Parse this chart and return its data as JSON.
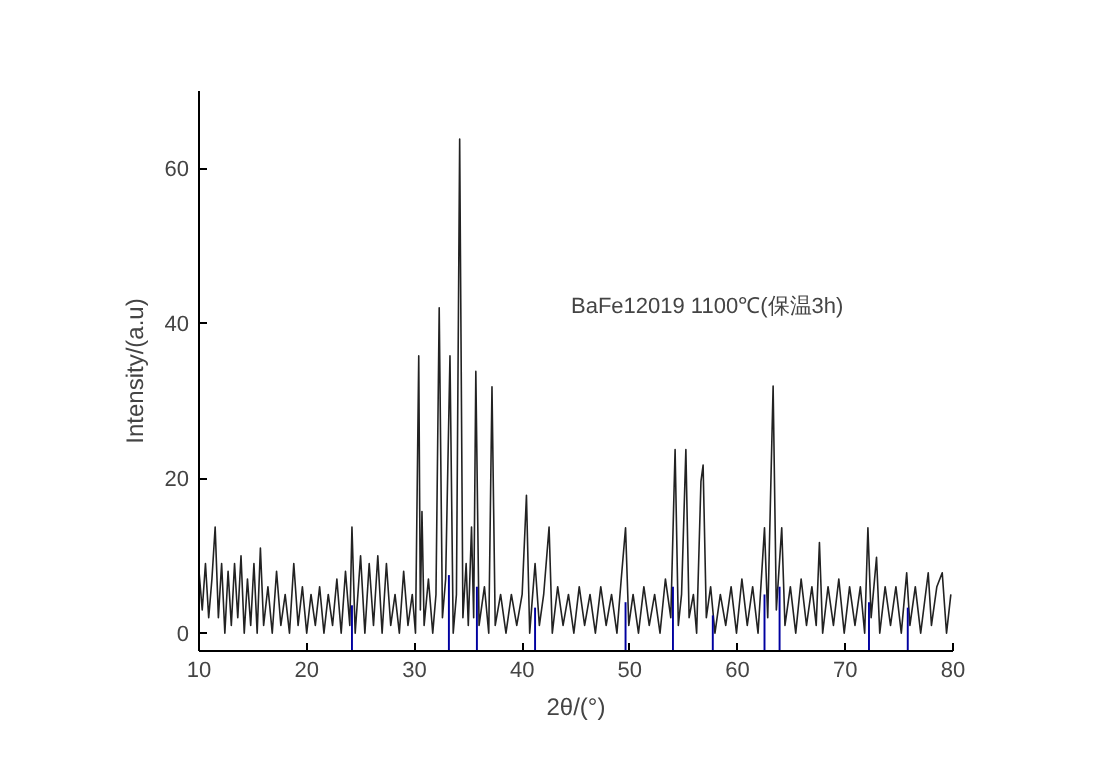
{
  "chart_data": {
    "type": "line",
    "xlabel": "2θ/(°)",
    "ylabel": "Intensity/(a.u)",
    "annotations": [
      "BaFe12019 1100℃(保温3h)"
    ],
    "xlim": [
      10,
      80
    ],
    "ylim": [
      -2.3,
      70
    ],
    "xticks": [
      10,
      20,
      30,
      40,
      50,
      60,
      70,
      80
    ],
    "yticks": [
      0,
      20,
      40,
      60
    ],
    "grid": false,
    "series": [
      {
        "color": "#222222",
        "x": [
          10,
          10.3,
          10.6,
          10.9,
          11.2,
          11.5,
          11.8,
          12.1,
          12.4,
          12.7,
          13.0,
          13.3,
          13.6,
          13.9,
          14.2,
          14.5,
          14.8,
          15.1,
          15.4,
          15.7,
          16.0,
          16.4,
          16.8,
          17.2,
          17.6,
          18.0,
          18.4,
          18.8,
          19.2,
          19.6,
          20.0,
          20.4,
          20.8,
          21.2,
          21.6,
          22.0,
          22.4,
          22.8,
          23.2,
          23.6,
          24.0,
          24.2,
          24.5,
          25.0,
          25.4,
          25.8,
          26.2,
          26.6,
          27.0,
          27.4,
          27.8,
          28.2,
          28.6,
          29.0,
          29.4,
          29.8,
          30.1,
          30.4,
          30.55,
          30.7,
          30.9,
          31.3,
          31.7,
          32.0,
          32.3,
          32.6,
          32.9,
          33.3,
          33.6,
          33.9,
          34.2,
          34.5,
          34.8,
          35.0,
          35.3,
          35.5,
          35.7,
          36.0,
          36.5,
          36.9,
          37.2,
          37.5,
          38.0,
          38.5,
          39.0,
          39.5,
          40.0,
          40.4,
          40.7,
          41.2,
          41.6,
          42.0,
          42.5,
          42.8,
          43.3,
          43.8,
          44.3,
          44.8,
          45.3,
          45.8,
          46.3,
          46.8,
          47.3,
          47.8,
          48.3,
          48.8,
          49.2,
          49.6,
          49.9,
          50.3,
          50.8,
          51.3,
          51.8,
          52.3,
          52.8,
          53.3,
          53.8,
          54.2,
          54.5,
          54.8,
          55.2,
          55.5,
          55.9,
          56.2,
          56.6,
          56.8,
          57.1,
          57.5,
          57.9,
          58.4,
          58.9,
          59.4,
          59.9,
          60.4,
          60.9,
          61.4,
          61.9,
          62.5,
          62.8,
          63.3,
          63.6,
          64.1,
          64.4,
          64.9,
          65.4,
          65.9,
          66.4,
          66.9,
          67.3,
          67.6,
          67.9,
          68.4,
          68.9,
          69.4,
          69.9,
          70.4,
          70.9,
          71.4,
          71.8,
          72.1,
          72.4,
          72.9,
          73.2,
          73.7,
          74.2,
          74.7,
          75.2,
          75.7,
          76.0,
          76.5,
          77.0,
          77.7,
          78.0,
          78.5,
          79.0,
          79.4,
          79.8
        ],
        "values": [
          8,
          3,
          9,
          2,
          7,
          13.7,
          2,
          9,
          0,
          8,
          1,
          9,
          2,
          10,
          0,
          7,
          1,
          9,
          0,
          11,
          1,
          6,
          0,
          8,
          1,
          5,
          0,
          9,
          1,
          6,
          0,
          5,
          1,
          6,
          0,
          5,
          1,
          7,
          0,
          8,
          1,
          13.7,
          0,
          10,
          0,
          9,
          1,
          10,
          0,
          9,
          1,
          5,
          0,
          8,
          1,
          5,
          0,
          35.8,
          3,
          15.7,
          1,
          7,
          0,
          5,
          42,
          2,
          7,
          35.8,
          0,
          5,
          63.8,
          2,
          9,
          1,
          13.7,
          2,
          33.8,
          1,
          6,
          0,
          31.8,
          1,
          5,
          0,
          5,
          1,
          5,
          17.8,
          0,
          9,
          1,
          5,
          13.7,
          0,
          6,
          1,
          5,
          0,
          6,
          1,
          5,
          0,
          6,
          1,
          5,
          0,
          7,
          13.6,
          1,
          5,
          0,
          6,
          1,
          5,
          0,
          7,
          2,
          23.7,
          1,
          5,
          23.7,
          2,
          5,
          0,
          19.6,
          21.7,
          2,
          6,
          0,
          5,
          1,
          6,
          0,
          7,
          1,
          6,
          0,
          13.6,
          2,
          31.9,
          3,
          13.6,
          1,
          6,
          0,
          7,
          1,
          6,
          1,
          11.7,
          0,
          6,
          1,
          7,
          0,
          6,
          1,
          6,
          0,
          13.6,
          2,
          9.8,
          0,
          6,
          1,
          6,
          0,
          7.8,
          1,
          6,
          0,
          7.8,
          1,
          6,
          7.8,
          0,
          5
        ]
      },
      {
        "type": "bar",
        "color": "#0000a0",
        "x": [
          24.2,
          33.2,
          35.8,
          41.2,
          49.6,
          54.0,
          57.7,
          62.5,
          63.9,
          72.2,
          75.8
        ],
        "base": [
          -2.3,
          -2.3,
          -2.3,
          -2.3,
          -2.3,
          -2.3,
          -2.3,
          -2.3,
          -2.3,
          -2.3,
          -2.3
        ],
        "values": [
          5.9,
          9.8,
          8.3,
          5.6,
          6.3,
          8.3,
          4.6,
          7.3,
          8.3,
          6.3,
          5.6
        ]
      }
    ]
  }
}
